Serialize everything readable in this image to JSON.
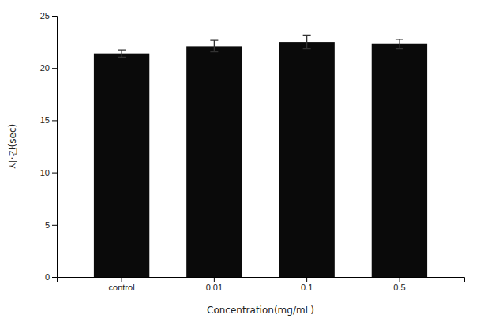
{
  "chart_data": {
    "type": "bar",
    "categories": [
      "control",
      "0.01",
      "0.1",
      "0.5"
    ],
    "values": [
      21.4,
      22.1,
      22.5,
      22.3
    ],
    "errors": [
      0.35,
      0.55,
      0.65,
      0.45
    ],
    "color": "#0a0a0a",
    "xlabel": "Concentration(mg/mL)",
    "ylabel": "시·간(sec)",
    "ylim": [
      0,
      25
    ],
    "yticks": [
      0,
      5,
      10,
      15,
      20,
      25
    ],
    "grid": false
  }
}
